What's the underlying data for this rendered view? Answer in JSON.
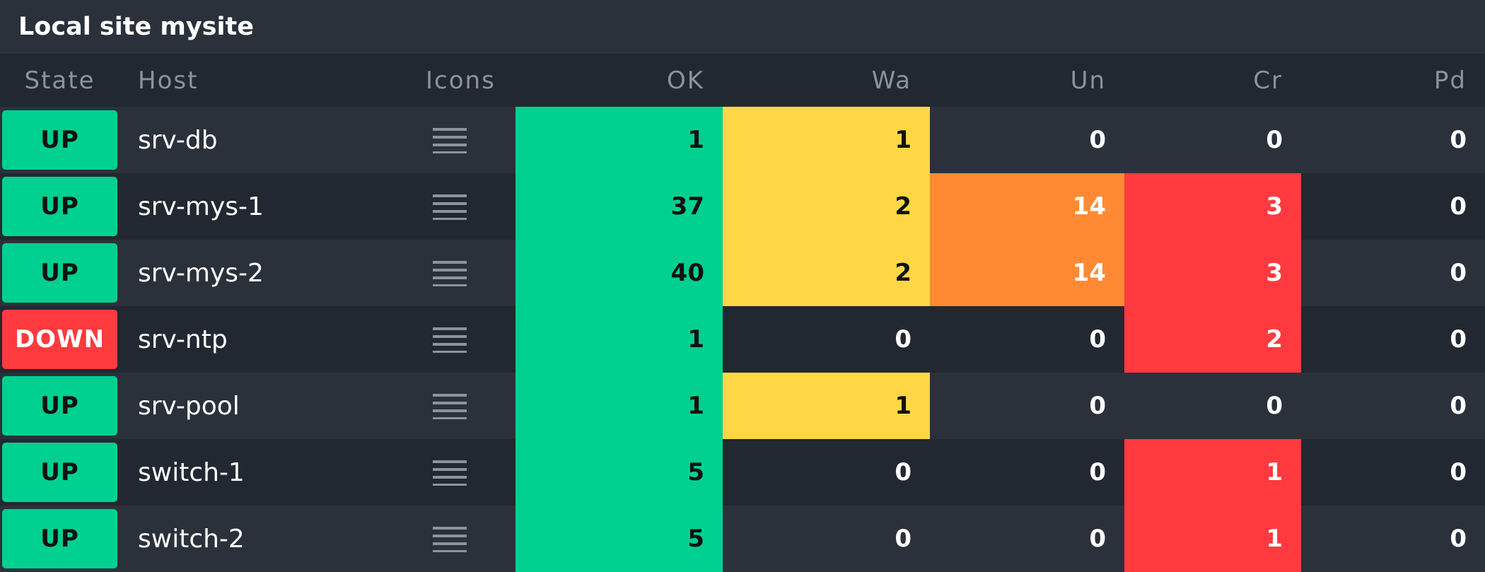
{
  "site": {
    "title": "Local site mysite"
  },
  "columns": {
    "state": "State",
    "host": "Host",
    "icons": "Icons",
    "ok": "OK",
    "wa": "Wa",
    "un": "Un",
    "cr": "Cr",
    "pd": "Pd"
  },
  "colors": {
    "ok": "#00d08f",
    "warn": "#ffd645",
    "unknown": "#ff8a33",
    "crit": "#ff3a3f",
    "up": "#00d08f",
    "down": "#ff3a3f"
  },
  "rows": [
    {
      "state": "UP",
      "host": "srv-db",
      "icon": "menu-icon",
      "ok": "1",
      "wa": "1",
      "un": "0",
      "cr": "0",
      "pd": "0"
    },
    {
      "state": "UP",
      "host": "srv-mys-1",
      "icon": "menu-icon",
      "ok": "37",
      "wa": "2",
      "un": "14",
      "cr": "3",
      "pd": "0"
    },
    {
      "state": "UP",
      "host": "srv-mys-2",
      "icon": "menu-icon",
      "ok": "40",
      "wa": "2",
      "un": "14",
      "cr": "3",
      "pd": "0"
    },
    {
      "state": "DOWN",
      "host": "srv-ntp",
      "icon": "menu-icon",
      "ok": "1",
      "wa": "0",
      "un": "0",
      "cr": "2",
      "pd": "0"
    },
    {
      "state": "UP",
      "host": "srv-pool",
      "icon": "menu-icon",
      "ok": "1",
      "wa": "1",
      "un": "0",
      "cr": "0",
      "pd": "0"
    },
    {
      "state": "UP",
      "host": "switch-1",
      "icon": "menu-icon",
      "ok": "5",
      "wa": "0",
      "un": "0",
      "cr": "1",
      "pd": "0"
    },
    {
      "state": "UP",
      "host": "switch-2",
      "icon": "menu-icon",
      "ok": "5",
      "wa": "0",
      "un": "0",
      "cr": "1",
      "pd": "0"
    }
  ]
}
